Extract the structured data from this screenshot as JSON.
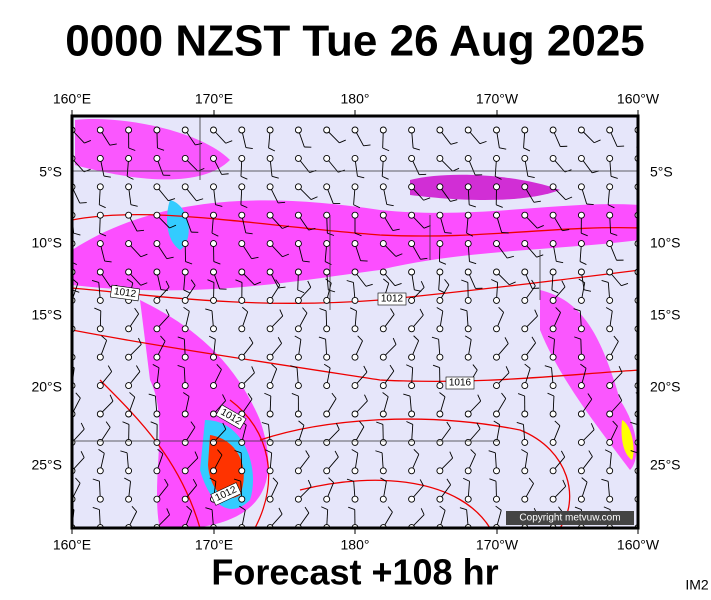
{
  "header": {
    "title": "0000 NZST Tue 26 Aug 2025"
  },
  "map": {
    "top_labels": [
      "160°E",
      "170°E",
      "180°",
      "170°W",
      "160°W"
    ],
    "bottom_labels": [
      "160°E",
      "170°E",
      "180°",
      "170°W",
      "160°W"
    ],
    "left_labels": [
      "5°S",
      "10°S",
      "15°S",
      "20°S",
      "25°S"
    ],
    "right_labels": [
      "5°S",
      "10°S",
      "15°S",
      "20°S",
      "25°S"
    ],
    "isobar_labels": [
      "1012",
      "1012",
      "1016",
      "1012",
      "1012"
    ],
    "copyright": "Copyright metvuw.com"
  },
  "footer": {
    "title": "Forecast +108 hr",
    "tag": "IM2"
  }
}
